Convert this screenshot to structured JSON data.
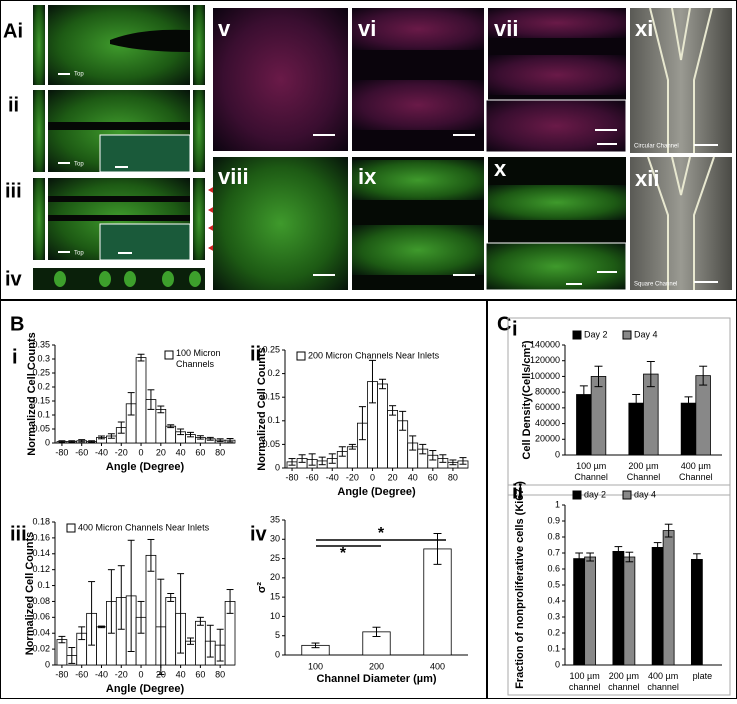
{
  "figure": {
    "A": {
      "labels": [
        "Ai",
        "ii",
        "iii",
        "iv",
        "v",
        "vi",
        "vii",
        "viii",
        "ix",
        "x",
        "xi",
        "xii"
      ],
      "top_labels": [
        "Top",
        "Top",
        "Top"
      ],
      "captions": [
        "Circular Channel",
        "Square Channel"
      ]
    },
    "B": "B",
    "C": "C"
  },
  "chart_data": [
    {
      "type": "bar",
      "panel": "i",
      "legend": "upper right",
      "x": [
        -80,
        -70,
        -60,
        -50,
        -40,
        -30,
        -20,
        -10,
        0,
        10,
        20,
        30,
        40,
        50,
        60,
        70,
        80,
        90
      ],
      "series": [
        {
          "name": "100 Micron Channels",
          "color": "#ffffff",
          "values": [
            0.005,
            0.005,
            0.008,
            0.005,
            0.02,
            0.025,
            0.055,
            0.14,
            0.305,
            0.155,
            0.12,
            0.06,
            0.04,
            0.03,
            0.02,
            0.015,
            0.01,
            0.01
          ],
          "errors": [
            0.003,
            0.003,
            0.004,
            0.003,
            0.005,
            0.008,
            0.02,
            0.04,
            0.012,
            0.035,
            0.012,
            0.005,
            0.01,
            0.008,
            0.006,
            0.005,
            0.005,
            0.006
          ]
        }
      ],
      "xlim": [
        -87,
        95
      ],
      "xticks": [
        -80,
        -60,
        -40,
        -20,
        0,
        20,
        40,
        60,
        80
      ],
      "ylim": [
        0,
        0.35
      ],
      "yticks": [
        0,
        0.05,
        0.1,
        0.15,
        0.2,
        0.25,
        0.3,
        0.35
      ],
      "xlabel": "Angle (Degree)",
      "ylabel": "Normalized Cell Counts"
    },
    {
      "type": "bar",
      "panel": "ii",
      "legend": "upper left",
      "x": [
        -80,
        -70,
        -60,
        -50,
        -40,
        -30,
        -20,
        -10,
        0,
        10,
        20,
        30,
        40,
        50,
        60,
        70,
        80,
        90
      ],
      "series": [
        {
          "name": "200 Micron Channels Near Inlets",
          "color": "#ffffff",
          "values": [
            0.013,
            0.02,
            0.018,
            0.015,
            0.02,
            0.035,
            0.045,
            0.095,
            0.183,
            0.178,
            0.122,
            0.1,
            0.053,
            0.04,
            0.027,
            0.02,
            0.012,
            0.015
          ],
          "errors": [
            0.007,
            0.008,
            0.012,
            0.008,
            0.01,
            0.01,
            0.005,
            0.035,
            0.045,
            0.01,
            0.01,
            0.02,
            0.015,
            0.01,
            0.01,
            0.008,
            0.005,
            0.007
          ]
        }
      ],
      "xlim": [
        -87,
        95
      ],
      "xticks": [
        -80,
        -60,
        -40,
        -20,
        0,
        20,
        40,
        60,
        80
      ],
      "ylim": [
        0,
        0.25
      ],
      "yticks": [
        0,
        0.05,
        0.1,
        0.15,
        0.2,
        0.25
      ],
      "xlabel": "Angle (Degree)",
      "ylabel": "Normalized Cell Counts"
    },
    {
      "type": "bar",
      "panel": "iii",
      "legend": "upper left",
      "x": [
        -80,
        -70,
        -60,
        -50,
        -40,
        -30,
        -20,
        -10,
        0,
        10,
        20,
        30,
        40,
        50,
        60,
        70,
        80,
        90
      ],
      "series": [
        {
          "name": "400 Micron Channels Near Inlets",
          "color": "#ffffff",
          "values": [
            0.032,
            0.012,
            0.04,
            0.065,
            0.048,
            0.08,
            0.085,
            0.087,
            0.06,
            0.138,
            0.048,
            0.085,
            0.065,
            0.03,
            0.055,
            0.03,
            0.025,
            0.08
          ],
          "errors": [
            0.004,
            0.01,
            0.008,
            0.04,
            0.001,
            0.04,
            0.04,
            0.07,
            0.02,
            0.02,
            0.06,
            0.005,
            0.05,
            0.004,
            0.005,
            0.02,
            0.02,
            0.015
          ]
        }
      ],
      "xlim": [
        -87,
        95
      ],
      "xticks": [
        -80,
        -60,
        -40,
        -20,
        0,
        20,
        40,
        60,
        80
      ],
      "ylim": [
        0,
        0.18
      ],
      "yticks": [
        0,
        0.02,
        0.04,
        0.06,
        0.08,
        0.1,
        0.12,
        0.14,
        0.16,
        0.18
      ],
      "xlabel": "Angle (Degree)",
      "ylabel": "Normalized Cell Counts"
    },
    {
      "type": "bar",
      "panel": "iv",
      "categories": [
        "100",
        "200",
        "400"
      ],
      "series": [
        {
          "color": "#ffffff",
          "values": [
            2.5,
            6,
            27.5
          ],
          "errors": [
            0.6,
            1.2,
            4
          ]
        }
      ],
      "ylim": [
        0,
        35
      ],
      "yticks": [
        0,
        5,
        10,
        15,
        20,
        25,
        30,
        35
      ],
      "xlabel": "Channel Diameter (µm)",
      "ylabel": "σ²",
      "annotations": [
        "*",
        "*"
      ]
    },
    {
      "type": "bar",
      "panel": "i",
      "legend": "top",
      "categories": [
        "100 µm Channel",
        "200  µm Channel",
        "400 µm Channel"
      ],
      "series": [
        {
          "name": "Day 2",
          "color": "#000000",
          "values": [
            77000,
            66000,
            66000
          ],
          "errors": [
            11000,
            11000,
            8000
          ]
        },
        {
          "name": "Day 4",
          "color": "#888888",
          "values": [
            100000,
            103000,
            101000
          ],
          "errors": [
            13000,
            16000,
            12000
          ]
        }
      ],
      "ylim": [
        0,
        140000
      ],
      "yticks": [
        0,
        20000,
        40000,
        60000,
        80000,
        100000,
        120000,
        140000
      ],
      "ylabel": "Cell Density(Cells/cm²)"
    },
    {
      "type": "bar",
      "panel": "ii",
      "legend": "top",
      "categories": [
        "100 µm channel",
        "200 µm channel",
        "400 µm channel",
        "plate"
      ],
      "series": [
        {
          "name": "day 2",
          "color": "#000000",
          "values": [
            0.665,
            0.71,
            0.735,
            0.66
          ],
          "errors": [
            0.035,
            0.03,
            0.03,
            0.035
          ]
        },
        {
          "name": "day 4",
          "color": "#888888",
          "values": [
            0.675,
            0.675,
            0.84,
            null
          ],
          "errors": [
            0.025,
            0.03,
            0.04,
            null
          ]
        }
      ],
      "ylim": [
        0,
        1
      ],
      "yticks": [
        0,
        0.1,
        0.2,
        0.3,
        0.4,
        0.5,
        0.6,
        0.7,
        0.8,
        0.9,
        1
      ],
      "ylabel": "Fraction of nonproliferative cells (Ki67-)"
    }
  ]
}
